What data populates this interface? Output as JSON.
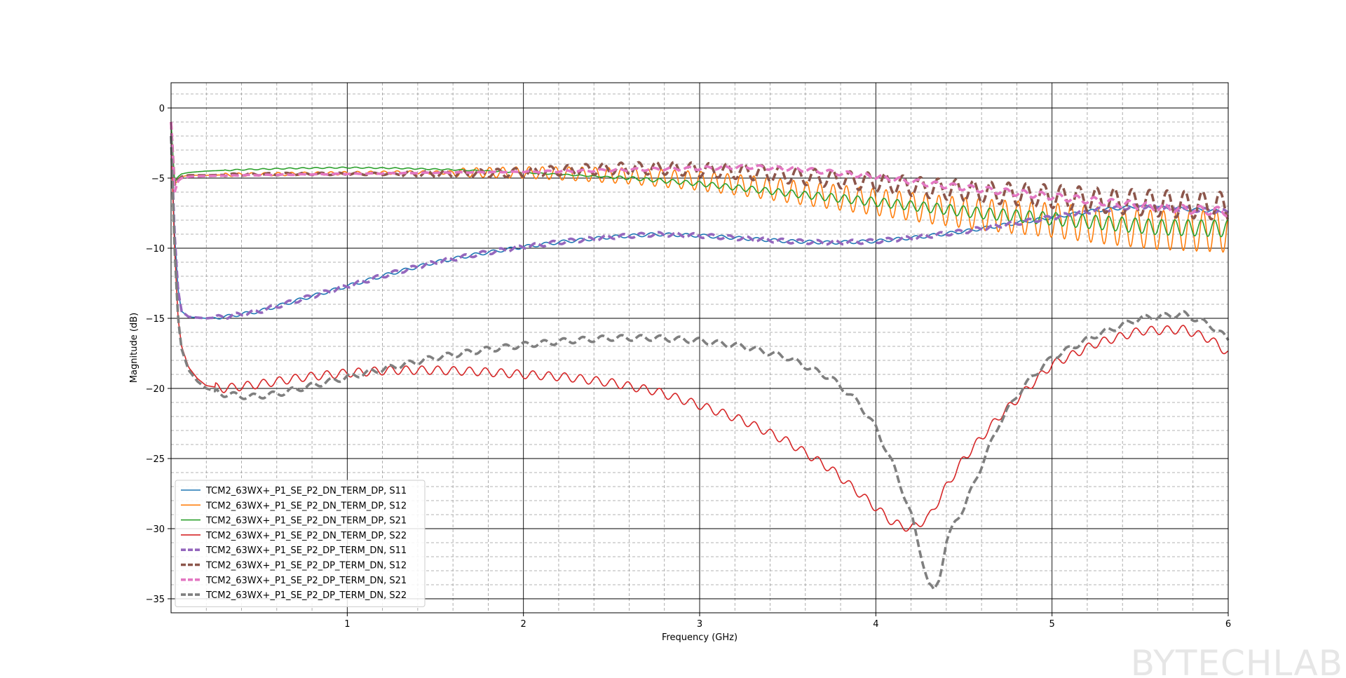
{
  "watermark": "BYTECHLAB",
  "chart_data": {
    "type": "line",
    "xlabel": "Frequency (GHz)",
    "ylabel": "Magnitude (dB)",
    "xlim": [
      0,
      6
    ],
    "ylim": [
      -36,
      1.8
    ],
    "xticks": [
      1,
      2,
      3,
      4,
      5,
      6
    ],
    "yticks": [
      0,
      -5,
      -10,
      -15,
      -20,
      -25,
      -30,
      -35
    ],
    "grid": true,
    "legend_position": "lower-left",
    "series": [
      {
        "name": "TCM2_63WX+_P1_SE_P2_DN_TERM_DP, S11",
        "color": "#1f77b4",
        "style": "solid",
        "x": [
          0.0,
          0.02,
          0.04,
          0.06,
          0.1,
          0.2,
          0.3,
          0.5,
          0.75,
          1.0,
          1.25,
          1.5,
          1.75,
          2.0,
          2.25,
          2.5,
          2.75,
          3.0,
          3.25,
          3.5,
          3.75,
          4.0,
          4.25,
          4.5,
          4.75,
          5.0,
          5.25,
          5.5,
          5.75,
          6.0
        ],
        "y": [
          -2.0,
          -9.0,
          -13.0,
          -14.5,
          -14.9,
          -15.0,
          -14.9,
          -14.5,
          -13.6,
          -12.7,
          -11.8,
          -11.0,
          -10.4,
          -9.9,
          -9.5,
          -9.2,
          -9.0,
          -9.1,
          -9.3,
          -9.5,
          -9.6,
          -9.5,
          -9.2,
          -8.8,
          -8.3,
          -7.8,
          -7.3,
          -7.0,
          -7.2,
          -7.4
        ],
        "ripple_amp": 0.12,
        "ripple_period": 0.1
      },
      {
        "name": "TCM2_63WX+_P1_SE_P2_DN_TERM_DP, S12",
        "color": "#ff7f0e",
        "style": "solid",
        "x": [
          0.0,
          0.02,
          0.04,
          0.06,
          0.1,
          0.2,
          0.4,
          0.7,
          1.0,
          1.3,
          1.6,
          2.0,
          2.3,
          2.6,
          3.0,
          3.3,
          3.6,
          4.0,
          4.3,
          4.6,
          5.0,
          5.3,
          5.6,
          6.0
        ],
        "y": [
          -1.0,
          -5.5,
          -5.1,
          -4.9,
          -4.8,
          -4.8,
          -4.75,
          -4.7,
          -4.65,
          -4.6,
          -4.6,
          -4.6,
          -4.7,
          -4.85,
          -5.2,
          -5.6,
          -6.1,
          -6.7,
          -7.2,
          -7.6,
          -8.0,
          -8.4,
          -8.7,
          -8.8
        ],
        "ripple_amp_start": 0.3,
        "ripple_amp_end": 1.5,
        "ripple_start_x": 1.6,
        "ripple_period": 0.075
      },
      {
        "name": "TCM2_63WX+_P1_SE_P2_DN_TERM_DP, S21",
        "color": "#2ca02c",
        "style": "solid",
        "x": [
          0.0,
          0.02,
          0.04,
          0.06,
          0.1,
          0.2,
          0.4,
          0.7,
          1.0,
          1.3,
          1.6,
          2.0,
          2.3,
          2.6,
          3.0,
          3.3,
          3.6,
          4.0,
          4.3,
          4.6,
          5.0,
          5.3,
          5.6,
          6.0
        ],
        "y": [
          -1.0,
          -5.3,
          -4.9,
          -4.7,
          -4.6,
          -4.5,
          -4.4,
          -4.3,
          -4.25,
          -4.3,
          -4.4,
          -4.6,
          -4.8,
          -5.0,
          -5.4,
          -5.8,
          -6.2,
          -6.7,
          -7.1,
          -7.5,
          -7.9,
          -8.2,
          -8.5,
          -8.6
        ],
        "ripple_amp_start": 0.1,
        "ripple_amp_end": 0.6,
        "ripple_start_x": 2.5,
        "ripple_period": 0.075
      },
      {
        "name": "TCM2_63WX+_P1_SE_P2_DN_TERM_DP, S22",
        "color": "#d62728",
        "style": "solid",
        "x": [
          0.0,
          0.02,
          0.04,
          0.06,
          0.1,
          0.15,
          0.2,
          0.3,
          0.5,
          0.75,
          1.0,
          1.25,
          1.5,
          1.75,
          2.0,
          2.25,
          2.5,
          2.75,
          3.0,
          3.25,
          3.5,
          3.75,
          4.0,
          4.1,
          4.2,
          4.3,
          4.4,
          4.5,
          4.6,
          4.7,
          4.8,
          4.9,
          5.0,
          5.25,
          5.5,
          5.75,
          5.9,
          6.0
        ],
        "y": [
          -2.0,
          -10.0,
          -15.0,
          -17.0,
          -18.5,
          -19.3,
          -19.8,
          -20.0,
          -19.7,
          -19.2,
          -18.9,
          -18.7,
          -18.7,
          -18.8,
          -19.0,
          -19.2,
          -19.6,
          -20.2,
          -21.2,
          -22.3,
          -23.8,
          -25.8,
          -28.5,
          -29.6,
          -30.0,
          -29.2,
          -27.0,
          -25.0,
          -23.5,
          -22.0,
          -20.8,
          -19.5,
          -18.3,
          -16.8,
          -15.9,
          -15.8,
          -16.5,
          -17.5
        ],
        "ripple_amp": 0.3,
        "ripple_period": 0.09
      },
      {
        "name": "TCM2_63WX+_P1_SE_P2_DP_TERM_DN, S11",
        "color": "#9467bd",
        "style": "dashed",
        "x": [
          0.0,
          0.02,
          0.04,
          0.06,
          0.1,
          0.2,
          0.3,
          0.5,
          0.75,
          1.0,
          1.25,
          1.5,
          1.75,
          2.0,
          2.25,
          2.5,
          2.75,
          3.0,
          3.25,
          3.5,
          3.75,
          4.0,
          4.25,
          4.5,
          4.75,
          5.0,
          5.25,
          5.5,
          5.75,
          6.0
        ],
        "y": [
          -2.0,
          -9.0,
          -13.0,
          -14.5,
          -14.9,
          -15.0,
          -14.9,
          -14.5,
          -13.6,
          -12.7,
          -11.8,
          -11.0,
          -10.4,
          -9.9,
          -9.5,
          -9.2,
          -9.0,
          -9.1,
          -9.3,
          -9.5,
          -9.6,
          -9.5,
          -9.2,
          -8.8,
          -8.3,
          -7.8,
          -7.3,
          -7.0,
          -7.2,
          -7.4
        ],
        "ripple_amp": 0.15,
        "ripple_period": 0.1
      },
      {
        "name": "TCM2_63WX+_P1_SE_P2_DP_TERM_DN, S12",
        "color": "#8c564b",
        "style": "dashed",
        "x": [
          0.0,
          0.02,
          0.04,
          0.06,
          0.1,
          0.2,
          0.4,
          0.7,
          1.0,
          1.3,
          1.6,
          2.0,
          2.3,
          2.6,
          2.8,
          3.0,
          3.3,
          3.6,
          4.0,
          4.3,
          4.6,
          5.0,
          5.3,
          5.6,
          6.0
        ],
        "y": [
          -1.0,
          -5.5,
          -5.1,
          -4.9,
          -4.8,
          -4.8,
          -4.75,
          -4.7,
          -4.7,
          -4.7,
          -4.7,
          -4.6,
          -4.4,
          -4.3,
          -4.3,
          -4.4,
          -4.6,
          -4.9,
          -5.3,
          -5.7,
          -6.0,
          -6.3,
          -6.6,
          -6.8,
          -7.0
        ],
        "ripple_amp_start": 0.2,
        "ripple_amp_end": 1.0,
        "ripple_start_x": 1.3,
        "ripple_period": 0.1
      },
      {
        "name": "TCM2_63WX+_P1_SE_P2_DP_TERM_DN, S21",
        "color": "#e377c2",
        "style": "dashed",
        "x": [
          0.0,
          0.02,
          0.04,
          0.06,
          0.1,
          0.2,
          0.4,
          0.7,
          1.0,
          1.3,
          1.6,
          2.0,
          2.3,
          2.6,
          3.0,
          3.3,
          3.6,
          4.0,
          4.3,
          4.6,
          5.0,
          5.3,
          5.6,
          6.0
        ],
        "y": [
          -1.0,
          -6.0,
          -5.2,
          -5.0,
          -4.9,
          -4.85,
          -4.8,
          -4.75,
          -4.7,
          -4.65,
          -4.6,
          -4.55,
          -4.5,
          -4.4,
          -4.3,
          -4.2,
          -4.4,
          -4.9,
          -5.4,
          -5.8,
          -6.3,
          -6.7,
          -7.1,
          -7.4
        ],
        "ripple_amp_start": 0.05,
        "ripple_amp_end": 0.3,
        "ripple_start_x": 2.0,
        "ripple_period": 0.1
      },
      {
        "name": "TCM2_63WX+_P1_SE_P2_DP_TERM_DN, S22",
        "color": "#7f7f7f",
        "style": "dashed",
        "x": [
          0.0,
          0.02,
          0.04,
          0.06,
          0.1,
          0.15,
          0.2,
          0.3,
          0.45,
          0.6,
          0.8,
          1.0,
          1.25,
          1.5,
          1.75,
          2.0,
          2.25,
          2.5,
          2.75,
          3.0,
          3.25,
          3.5,
          3.75,
          3.9,
          4.0,
          4.1,
          4.2,
          4.25,
          4.3,
          4.33,
          4.36,
          4.4,
          4.45,
          4.5,
          4.6,
          4.7,
          4.8,
          4.9,
          5.0,
          5.25,
          5.5,
          5.75,
          5.9,
          6.0
        ],
        "y": [
          -2.0,
          -10.0,
          -15.0,
          -17.2,
          -18.7,
          -19.5,
          -20.0,
          -20.4,
          -20.6,
          -20.4,
          -19.8,
          -19.2,
          -18.5,
          -17.8,
          -17.3,
          -16.9,
          -16.6,
          -16.4,
          -16.4,
          -16.6,
          -17.0,
          -17.8,
          -19.3,
          -21.0,
          -22.8,
          -25.5,
          -29.0,
          -31.5,
          -34.0,
          -34.5,
          -33.5,
          -31.0,
          -29.5,
          -28.5,
          -25.5,
          -22.5,
          -20.5,
          -19.0,
          -17.8,
          -16.2,
          -15.0,
          -14.7,
          -15.5,
          -16.5
        ],
        "ripple_amp": 0.2,
        "ripple_period": 0.11
      }
    ]
  }
}
